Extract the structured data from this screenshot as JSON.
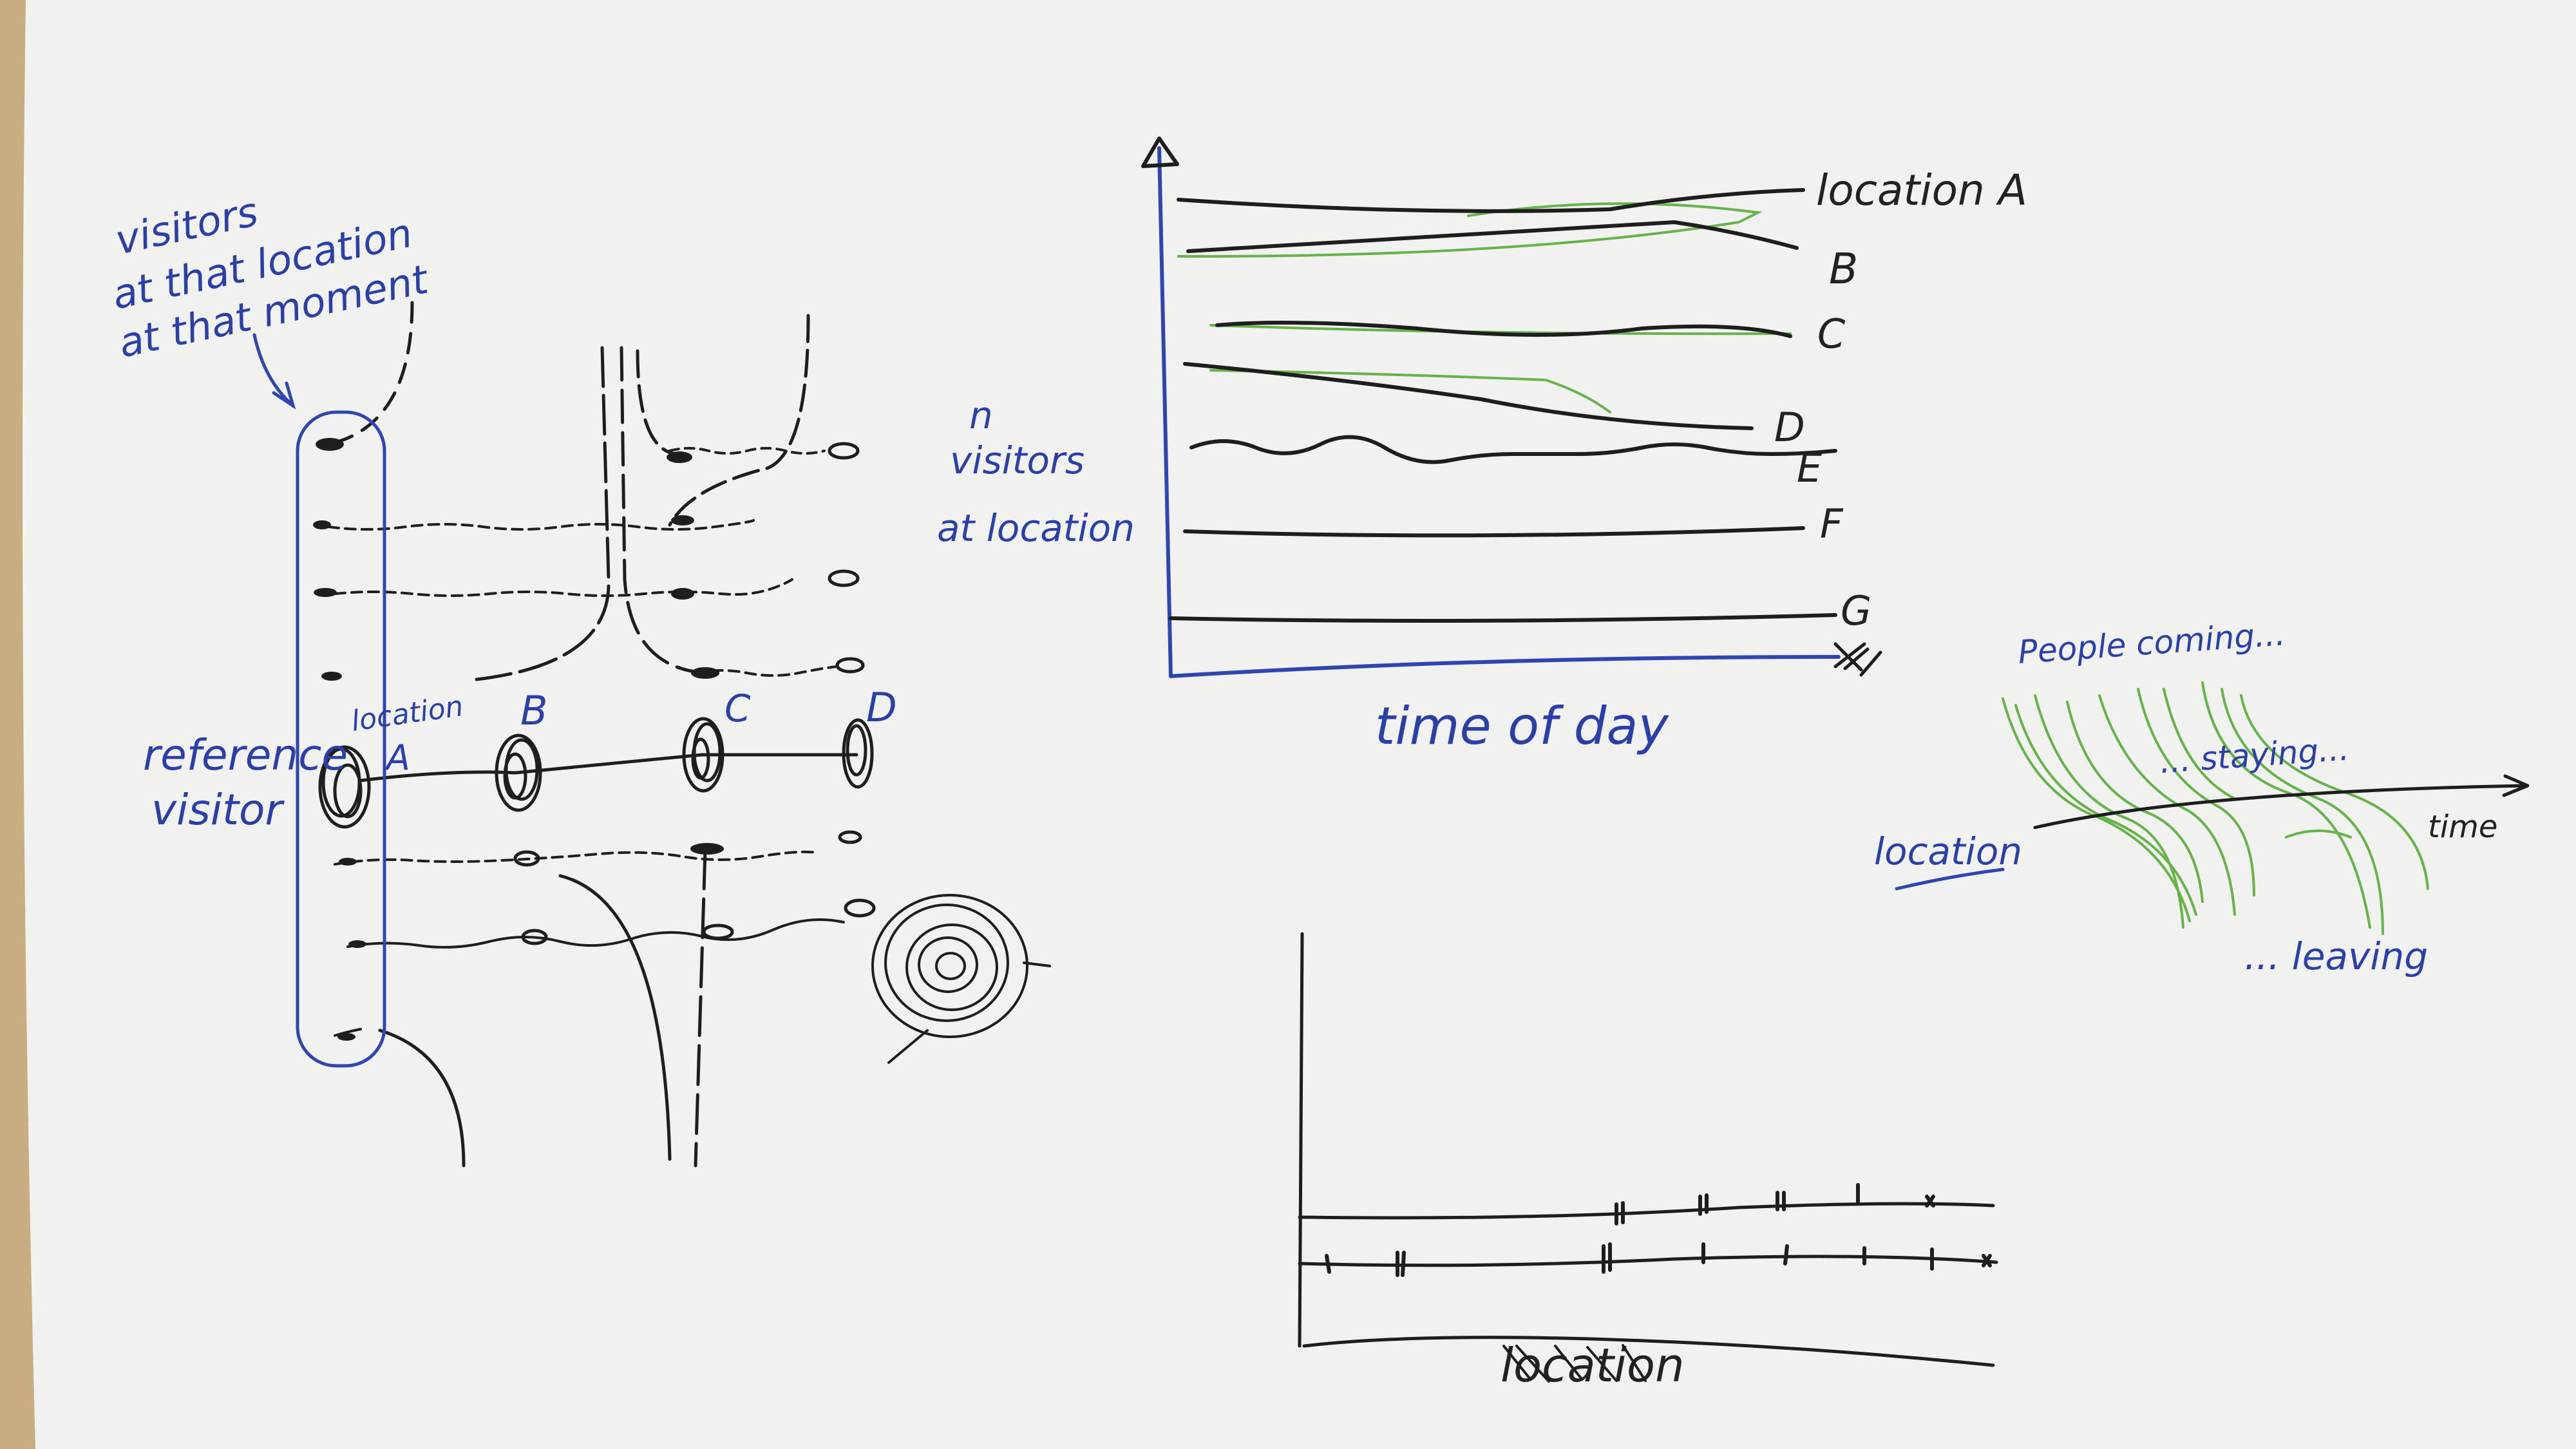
{
  "paper_color": "#f1f1ef",
  "ink_color": "#1e1e1e",
  "blue_ink": "#2f46b0",
  "green_ink": "#66b34a",
  "sketch_left": {
    "annotation": [
      "visitors",
      "at that location",
      "at that moment"
    ],
    "reference_label": [
      "reference",
      "visitor"
    ],
    "location_label": "location",
    "locations": [
      "A",
      "B",
      "C",
      "D"
    ]
  },
  "sketch_lines": {
    "ylabel": [
      "n",
      "visitors",
      "at location"
    ],
    "xlabel": "time of day",
    "series": [
      "location A",
      "B",
      "C",
      "D",
      "E",
      "F",
      "G"
    ]
  },
  "sketch_flow": {
    "title": "People coming...",
    "staying": "... staying...",
    "leaving": "... leaving",
    "location": "location",
    "time": "time"
  },
  "sketch_timeline": {
    "xlabel": "location"
  }
}
